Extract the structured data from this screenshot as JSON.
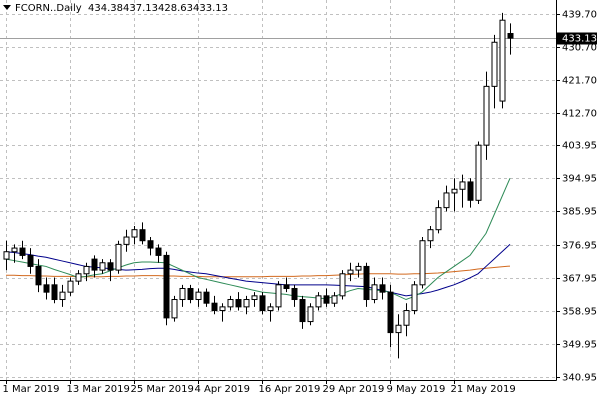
{
  "chart_data": {
    "type": "candlestick",
    "title": "FCORN..Daily",
    "categories": [
      "1 Mar 2019",
      null,
      null,
      null,
      null,
      null,
      null,
      null,
      "13 Mar 2019",
      null,
      null,
      null,
      null,
      null,
      null,
      null,
      "25 Mar 2019",
      null,
      null,
      null,
      null,
      null,
      null,
      null,
      "4 Apr 2019",
      null,
      null,
      null,
      null,
      null,
      null,
      null,
      "16 Apr 2019",
      null,
      null,
      null,
      null,
      null,
      null,
      null,
      "29 Apr 2019",
      null,
      null,
      null,
      null,
      null,
      null,
      null,
      "9 May 2019",
      null,
      null,
      null,
      null,
      null,
      null,
      null,
      "21 May 2019",
      null,
      null,
      null,
      null,
      null,
      null,
      null
    ],
    "open": [
      373,
      375,
      376,
      374,
      371,
      366,
      366,
      362,
      364,
      367,
      369,
      373,
      370,
      372,
      370,
      377,
      379,
      381,
      378,
      376,
      374,
      357,
      362,
      365,
      362,
      364,
      361,
      359,
      360,
      362,
      360,
      362,
      363,
      359,
      360,
      366,
      365,
      362,
      356,
      360,
      363,
      361,
      363,
      369,
      370,
      371,
      362,
      366,
      364,
      353,
      355,
      359,
      366,
      378,
      381,
      387,
      391,
      392,
      394,
      389,
      404,
      420,
      416,
      434.38
    ],
    "high": [
      378,
      377,
      378,
      376,
      373,
      368,
      368,
      366,
      368,
      370,
      372,
      374,
      373,
      373,
      378,
      381,
      382,
      383,
      379,
      377,
      375,
      363,
      366,
      366,
      365,
      365,
      363,
      361,
      363,
      364,
      363,
      364,
      364,
      361,
      367,
      368,
      366,
      363,
      361,
      364,
      365,
      364,
      370,
      372,
      372,
      372,
      368,
      368,
      366,
      358,
      361,
      367,
      379,
      382,
      389,
      393,
      395,
      396,
      395,
      405,
      424,
      434,
      440,
      437.13
    ],
    "low": [
      370,
      372,
      373,
      369,
      364,
      362,
      361,
      360,
      363,
      366,
      367,
      368,
      369,
      367,
      369,
      375,
      377,
      377,
      374,
      372,
      355,
      356,
      360,
      361,
      360,
      360,
      358,
      356,
      359,
      359,
      358,
      360,
      358,
      356,
      359,
      364,
      360,
      354,
      355,
      359,
      360,
      360,
      362,
      367,
      368,
      360,
      361,
      362,
      349,
      346,
      352,
      358,
      365,
      376,
      380,
      386,
      386,
      387,
      387,
      388,
      400,
      414,
      414,
      428.63
    ],
    "close": [
      375,
      376,
      374,
      371,
      366,
      364,
      362,
      364,
      367,
      369,
      371,
      370,
      372,
      370,
      377,
      379,
      381,
      378,
      376,
      374,
      357,
      362,
      365,
      362,
      364,
      361,
      359,
      360,
      362,
      360,
      362,
      363,
      359,
      360,
      366,
      365,
      362,
      356,
      360,
      363,
      361,
      363,
      369,
      370,
      371,
      362,
      366,
      364,
      353,
      355,
      359,
      366,
      378,
      381,
      387,
      391,
      392,
      394,
      389,
      404,
      420,
      432,
      438,
      433.13
    ],
    "up_color": "#ffffff",
    "down_color": "#000000",
    "series": [
      {
        "color": "#d2691e",
        "values": [
          368.6,
          368.6,
          368.5,
          368.5,
          368.4,
          368.4,
          368.3,
          368.3,
          368.3,
          368.2,
          368.2,
          368.2,
          368.2,
          368.3,
          368.3,
          368.4,
          368.4,
          368.5,
          368.5,
          368.5,
          368.4,
          368.4,
          368.3,
          368.3,
          368.3,
          368.2,
          368.2,
          368.2,
          368.2,
          368.2,
          368.2,
          368.2,
          368.2,
          368.3,
          368.3,
          368.3,
          368.3,
          368.4,
          368.4,
          368.5,
          368.5,
          368.6,
          368.7,
          368.8,
          368.9,
          369,
          369,
          369,
          369,
          368.9,
          368.9,
          369,
          369,
          369.1,
          369.2,
          369.4,
          369.6,
          369.8,
          370,
          370.3,
          370.5,
          370.7,
          370.9,
          371.1
        ]
      },
      {
        "color": "#00008b",
        "values": [
          375,
          374.8,
          374.5,
          374.2,
          373.8,
          373.5,
          373,
          372.5,
          372,
          371.5,
          371,
          370.8,
          370.6,
          370.4,
          370.2,
          370,
          370.1,
          370.2,
          370.4,
          370.5,
          370.5,
          370.2,
          369.8,
          369.5,
          369.2,
          369,
          368.6,
          368.2,
          367.8,
          367.4,
          367,
          366.8,
          366.6,
          366.4,
          366.2,
          366,
          366,
          366,
          366,
          366,
          366,
          365.9,
          365.8,
          365.7,
          365.6,
          365.5,
          365,
          364.5,
          364,
          363.5,
          363,
          363.3,
          363.6,
          364,
          364.6,
          365.3,
          366,
          366.9,
          367.9,
          369,
          371,
          373,
          375,
          377
        ]
      },
      {
        "color": "#2e8b57",
        "values": [
          373,
          372.6,
          372.2,
          371.8,
          371.4,
          371,
          370.2,
          369.5,
          368.8,
          368,
          368.3,
          368.7,
          369,
          369.8,
          370.6,
          371.4,
          372,
          372.2,
          372.2,
          372.1,
          372,
          371,
          370,
          369,
          368,
          367.5,
          367,
          366.5,
          366,
          365.5,
          365,
          364.5,
          364,
          363.8,
          363.6,
          363.4,
          363,
          362.8,
          362.6,
          362.4,
          362.2,
          362.8,
          363.6,
          364.4,
          365,
          364.8,
          364.6,
          364.4,
          364,
          363,
          362,
          362.8,
          364,
          366,
          368,
          369.5,
          371,
          372.5,
          374,
          377,
          380,
          385,
          390,
          395
        ]
      }
    ],
    "ylim": [
      340.1,
      443.5
    ],
    "yticks": [
      {
        "value": 340.95,
        "label": "340.95"
      },
      {
        "value": 349.95,
        "label": "349.95"
      },
      {
        "value": 358.95,
        "label": "358.95"
      },
      {
        "value": 367.95,
        "label": "367.95"
      },
      {
        "value": 376.95,
        "label": "376.95"
      },
      {
        "value": 385.95,
        "label": "385.95"
      },
      {
        "value": 394.95,
        "label": "394.95"
      },
      {
        "value": 403.95,
        "label": "403.95"
      },
      {
        "value": 412.7,
        "label": "412.70"
      },
      {
        "value": 421.7,
        "label": "421.70"
      },
      {
        "value": 430.7,
        "label": "430.70"
      },
      {
        "value": 439.7,
        "label": "439.70"
      }
    ],
    "grid": true,
    "price_line": true
  }
}
